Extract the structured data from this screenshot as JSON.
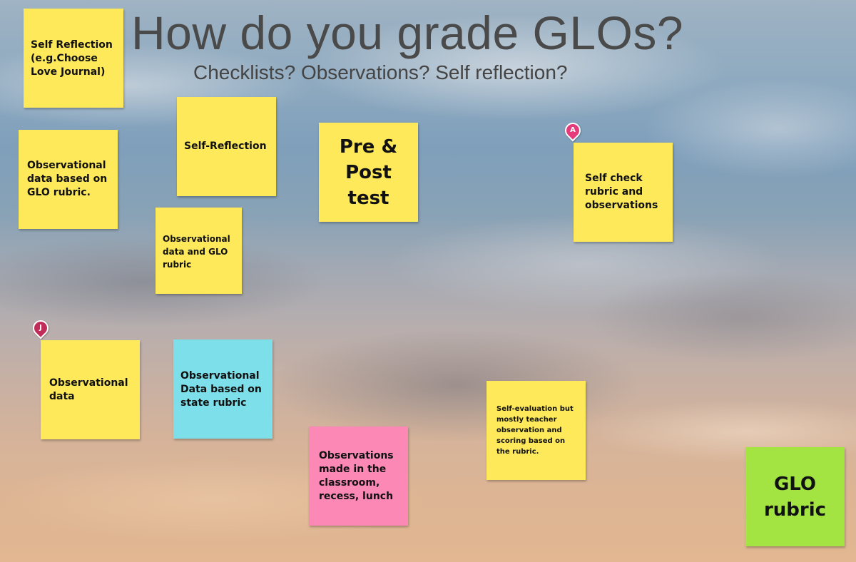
{
  "board": {
    "title": "How do you grade GLOs?",
    "subtitle": "Checklists? Observations? Self reflection?"
  },
  "colors": {
    "yellow": "#fde95a",
    "blue": "#7ddfea",
    "pink": "#fb88b5",
    "green": "#a3e443",
    "pin_a": "#e73a7b",
    "pin_j": "#c12d5a"
  },
  "notes": [
    {
      "id": "self-reflection-journal",
      "text": "Self Reflection (e.g.Choose Love Journal)",
      "color": "yellow"
    },
    {
      "id": "observational-glo-rubric",
      "text": "Observational data based on GLO rubric.",
      "color": "yellow"
    },
    {
      "id": "self-reflection",
      "text": "Self-Reflection",
      "color": "yellow"
    },
    {
      "id": "observational-and-glo",
      "text": "Observational data and GLO rubric",
      "color": "yellow"
    },
    {
      "id": "pre-post-test",
      "text": "Pre & Post test",
      "color": "yellow"
    },
    {
      "id": "self-check-rubric",
      "text": "Self check rubric and observations",
      "color": "yellow"
    },
    {
      "id": "observational-data",
      "text": "Observational data",
      "color": "yellow"
    },
    {
      "id": "observational-state-rubric",
      "text": "Observational Data based on state rubric",
      "color": "blue"
    },
    {
      "id": "observations-classroom",
      "text": "Observations made in the classroom, recess, lunch",
      "color": "pink"
    },
    {
      "id": "self-evaluation",
      "text": "Self-evaluation but mostly teacher observation and scoring based on the rubric.",
      "color": "yellow"
    },
    {
      "id": "glo-rubric",
      "text": "GLO rubric",
      "color": "green"
    }
  ],
  "pins": [
    {
      "label": "A",
      "color": "pin_a"
    },
    {
      "label": "J",
      "color": "pin_j"
    }
  ]
}
